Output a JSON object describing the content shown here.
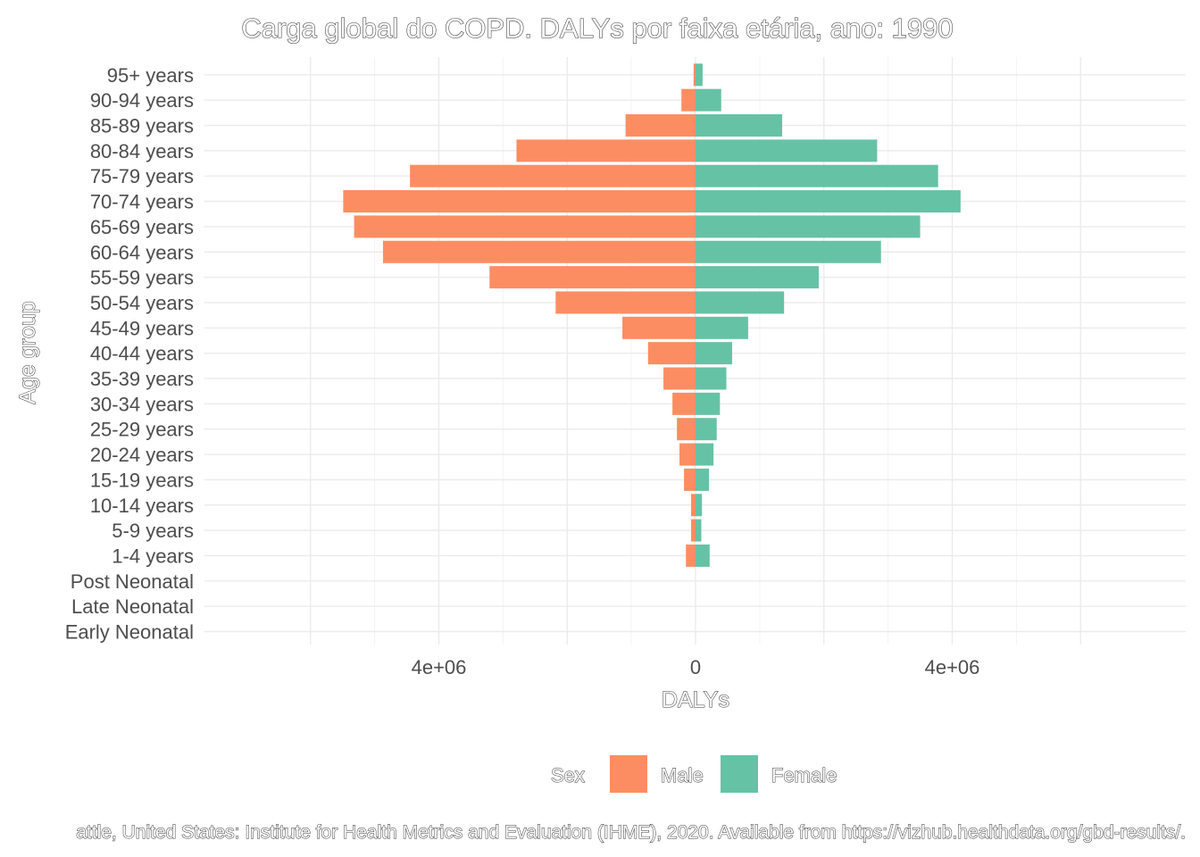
{
  "chart_data": {
    "type": "bar",
    "orientation": "horizontal-population-pyramid",
    "title": "Carga global do COPD. DALYs por faixa etária, ano: 1990",
    "xlabel": "DALYs",
    "ylabel": "Age group",
    "xlim": [
      -6000000,
      6000000
    ],
    "x_ticks": [
      {
        "value": -4000000,
        "label": "4e+06"
      },
      {
        "value": 0,
        "label": "0"
      },
      {
        "value": 4000000,
        "label": "4e+06"
      }
    ],
    "categories": [
      "Early Neonatal",
      "Late Neonatal",
      "Post Neonatal",
      "1-4 years",
      "5-9 years",
      "10-14 years",
      "15-19 years",
      "20-24 years",
      "25-29 years",
      "30-34 years",
      "35-39 years",
      "40-44 years",
      "45-49 years",
      "50-54 years",
      "55-59 years",
      "60-64 years",
      "65-69 years",
      "70-74 years",
      "75-79 years",
      "80-84 years",
      "85-89 years",
      "90-94 years",
      "95+ years"
    ],
    "series": [
      {
        "name": "Male",
        "color": "#fc8d62",
        "values": [
          0,
          0,
          0,
          150000,
          70000,
          70000,
          180000,
          250000,
          290000,
          360000,
          500000,
          740000,
          1140000,
          2180000,
          3210000,
          4870000,
          5320000,
          5490000,
          4450000,
          2790000,
          1090000,
          220000,
          30000
        ]
      },
      {
        "name": "Female",
        "color": "#66c2a5",
        "values": [
          0,
          0,
          0,
          220000,
          90000,
          100000,
          210000,
          280000,
          330000,
          380000,
          480000,
          570000,
          820000,
          1380000,
          1920000,
          2890000,
          3500000,
          4130000,
          3780000,
          2830000,
          1350000,
          400000,
          110000
        ]
      }
    ],
    "legend": {
      "title": "Sex",
      "position": "bottom",
      "entries": [
        "Male",
        "Female"
      ]
    },
    "grid": true,
    "caption": "attle, United States: Institute for Health Metrics and Evaluation (IHME), 2020. Available from https://vizhub.healthdata.org/gbd-results/."
  }
}
